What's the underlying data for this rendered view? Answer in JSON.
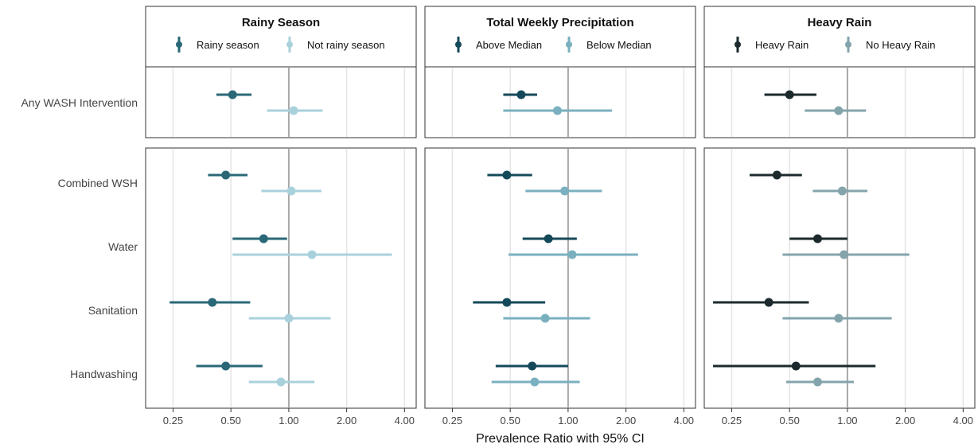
{
  "chart_data": {
    "type": "forest",
    "xlabel": "Prevalence Ratio with 95% CI",
    "x_scale": "log2",
    "xlim": [
      0.18,
      4.6
    ],
    "x_ticks": [
      0.25,
      0.5,
      1,
      2,
      4
    ],
    "x_tick_labels": [
      "0.25",
      "0.50",
      "1.00",
      "2.00",
      "4.00"
    ],
    "reference_line": 1,
    "grid": true,
    "legend_position": "top",
    "categories": {
      "top": [
        "Any WASH Intervention"
      ],
      "bottom": [
        "Combined WSH",
        "Water",
        "Sanitation",
        "Handwashing"
      ]
    },
    "panels": [
      {
        "title": "Rainy Season",
        "series": [
          {
            "name": "Rainy season",
            "color": "#2a6878"
          },
          {
            "name": "Not rainy season",
            "color": "#a9d1dc"
          }
        ],
        "rows": {
          "Any WASH Intervention": [
            [
              0.51,
              0.42,
              0.64
            ],
            [
              1.06,
              0.77,
              1.5
            ]
          ],
          "Combined WSH": [
            [
              0.47,
              0.38,
              0.61
            ],
            [
              1.03,
              0.72,
              1.48
            ]
          ],
          "Water": [
            [
              0.74,
              0.51,
              0.98
            ],
            [
              1.32,
              0.51,
              3.44
            ]
          ],
          "Sanitation": [
            [
              0.4,
              0.24,
              0.63
            ],
            [
              1.0,
              0.62,
              1.65
            ]
          ],
          "Handwashing": [
            [
              0.47,
              0.33,
              0.73
            ],
            [
              0.91,
              0.62,
              1.36
            ]
          ]
        }
      },
      {
        "title": "Total Weekly Precipitation",
        "series": [
          {
            "name": "Above Median",
            "color": "#14495a"
          },
          {
            "name": "Below Median",
            "color": "#7ab0c0"
          }
        ],
        "rows": {
          "Any WASH Intervention": [
            [
              0.57,
              0.46,
              0.69
            ],
            [
              0.88,
              0.46,
              1.69
            ]
          ],
          "Combined WSH": [
            [
              0.48,
              0.38,
              0.65
            ],
            [
              0.96,
              0.6,
              1.5
            ]
          ],
          "Water": [
            [
              0.79,
              0.58,
              1.11
            ],
            [
              1.05,
              0.49,
              2.31
            ]
          ],
          "Sanitation": [
            [
              0.48,
              0.32,
              0.76
            ],
            [
              0.76,
              0.46,
              1.3
            ]
          ],
          "Handwashing": [
            [
              0.65,
              0.42,
              1.0
            ],
            [
              0.67,
              0.4,
              1.15
            ]
          ]
        }
      },
      {
        "title": "Heavy Rain",
        "series": [
          {
            "name": "Heavy Rain",
            "color": "#1c2a2e"
          },
          {
            "name": "No Heavy Rain",
            "color": "#84a4ac"
          }
        ],
        "rows": {
          "Any WASH Intervention": [
            [
              0.5,
              0.37,
              0.69
            ],
            [
              0.9,
              0.6,
              1.25
            ]
          ],
          "Combined WSH": [
            [
              0.43,
              0.31,
              0.58
            ],
            [
              0.94,
              0.66,
              1.27
            ]
          ],
          "Water": [
            [
              0.7,
              0.5,
              1.0
            ],
            [
              0.96,
              0.46,
              2.1
            ]
          ],
          "Sanitation": [
            [
              0.39,
              0.2,
              0.63
            ],
            [
              0.9,
              0.46,
              1.7
            ]
          ],
          "Handwashing": [
            [
              0.54,
              0.2,
              1.4
            ],
            [
              0.7,
              0.48,
              1.08
            ]
          ]
        }
      }
    ]
  }
}
